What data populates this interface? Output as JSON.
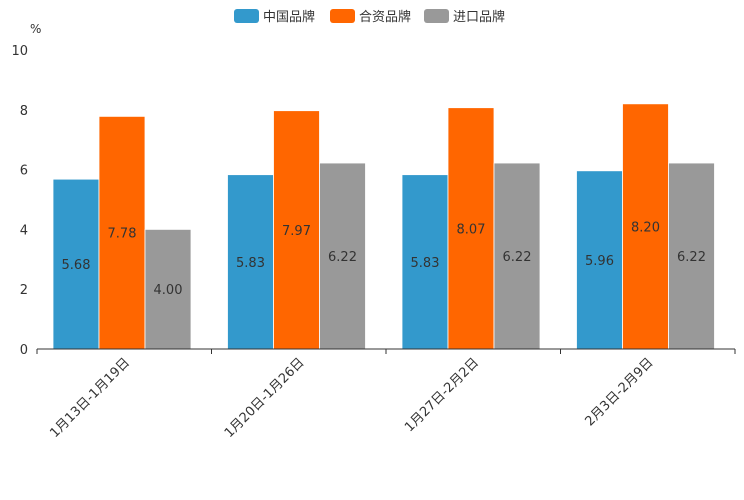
{
  "chart_data": {
    "type": "bar",
    "title": "",
    "xlabel": "",
    "ylabel": "%",
    "ylim": [
      0,
      10
    ],
    "yticks": [
      0,
      2,
      4,
      6,
      8,
      10
    ],
    "grid": false,
    "legend_position": "top-center",
    "categories": [
      "1月13日-1月19日",
      "1月20日-1月26日",
      "1月27日-2月2日",
      "2月3日-2月9日"
    ],
    "series": [
      {
        "name": "中国品牌",
        "color": "#3399cc",
        "values": [
          5.68,
          5.83,
          5.83,
          5.96
        ],
        "labels": [
          "5.68",
          "5.83",
          "5.83",
          "5.96"
        ]
      },
      {
        "name": "合资品牌",
        "color": "#ff6600",
        "values": [
          7.78,
          7.97,
          8.07,
          8.2
        ],
        "labels": [
          "7.78",
          "7.97",
          "8.07",
          "8.20"
        ]
      },
      {
        "name": "进口品牌",
        "color": "#999999",
        "values": [
          4.0,
          6.22,
          6.22,
          6.22
        ],
        "labels": [
          "4.00",
          "6.22",
          "6.22",
          "6.22"
        ]
      }
    ]
  }
}
